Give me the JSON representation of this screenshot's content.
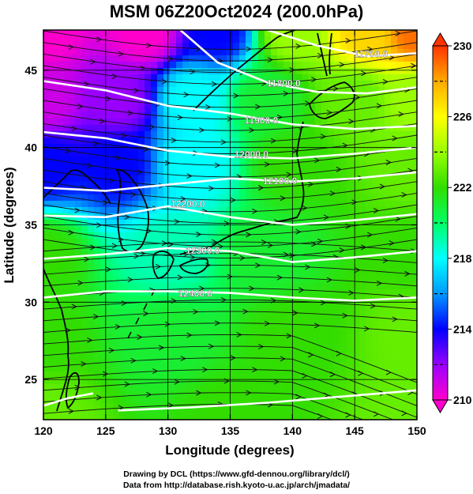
{
  "title": "MSM 06Z20Oct2024 (200.0hPa)",
  "credits": {
    "line1": "Drawing by DCL (https://www.gfd-dennou.org/library/dcl/)",
    "line2": "Data from http://database.rish.kyoto-u.ac.jp/arch/jmadata/"
  },
  "chart_data": {
    "type": "heatmap",
    "xlabel": "Longitude (degrees)",
    "ylabel": "Latitude  (degrees)",
    "xlim": [
      120,
      150
    ],
    "ylim": [
      22.4,
      47.6
    ],
    "xticks": [
      120,
      125,
      130,
      135,
      140,
      145,
      150
    ],
    "yticks": [
      25,
      30,
      35,
      40,
      45
    ],
    "colorbar": {
      "min": 210,
      "max": 230,
      "ticks": [
        210,
        214,
        218,
        222,
        226,
        230
      ],
      "colors": [
        "#ff00cc",
        "#9900ff",
        "#0000ff",
        "#0099ff",
        "#00ffff",
        "#00ff66",
        "#33dd00",
        "#99ff00",
        "#ffff00",
        "#ffaa00",
        "#ff3300"
      ]
    },
    "temperature_field": [
      {
        "lon": 120,
        "lat": 47.6,
        "value": 210
      },
      {
        "lon": 128,
        "lat": 47.6,
        "value": 210
      },
      {
        "lon": 134,
        "lat": 47.6,
        "value": 214
      },
      {
        "lon": 140,
        "lat": 47.6,
        "value": 224
      },
      {
        "lon": 146,
        "lat": 47.6,
        "value": 227
      },
      {
        "lon": 150,
        "lat": 47.6,
        "value": 229
      },
      {
        "lon": 120,
        "lat": 43,
        "value": 211
      },
      {
        "lon": 126,
        "lat": 43,
        "value": 212
      },
      {
        "lon": 132,
        "lat": 43,
        "value": 218
      },
      {
        "lon": 138,
        "lat": 43,
        "value": 221
      },
      {
        "lon": 145,
        "lat": 43,
        "value": 223
      },
      {
        "lon": 150,
        "lat": 43,
        "value": 224
      },
      {
        "lon": 120,
        "lat": 39,
        "value": 214
      },
      {
        "lon": 126,
        "lat": 39,
        "value": 214
      },
      {
        "lon": 132,
        "lat": 39,
        "value": 218
      },
      {
        "lon": 140,
        "lat": 39,
        "value": 222
      },
      {
        "lon": 150,
        "lat": 39,
        "value": 223
      },
      {
        "lon": 120,
        "lat": 33,
        "value": 222
      },
      {
        "lon": 130,
        "lat": 33,
        "value": 219
      },
      {
        "lon": 138,
        "lat": 33,
        "value": 221
      },
      {
        "lon": 150,
        "lat": 33,
        "value": 222
      },
      {
        "lon": 120,
        "lat": 28,
        "value": 222
      },
      {
        "lon": 130,
        "lat": 28,
        "value": 221
      },
      {
        "lon": 140,
        "lat": 28,
        "value": 222
      },
      {
        "lon": 150,
        "lat": 28,
        "value": 223
      },
      {
        "lon": 120,
        "lat": 22.4,
        "value": 223
      },
      {
        "lon": 135,
        "lat": 22.4,
        "value": 222
      },
      {
        "lon": 150,
        "lat": 22.4,
        "value": 223
      }
    ],
    "contours": [
      {
        "label": "11700.0",
        "label_at": [
          146.3,
          46.1
        ],
        "points": [
          [
            138,
            47.6
          ],
          [
            142,
            46.6
          ],
          [
            146,
            45.9
          ],
          [
            150,
            46.1
          ]
        ]
      },
      {
        "label": "11800.0",
        "label_at": [
          139.3,
          44.2
        ],
        "points": [
          [
            131,
            47.6
          ],
          [
            134,
            45.5
          ],
          [
            138,
            44.2
          ],
          [
            142,
            43.6
          ],
          [
            146,
            43.5
          ],
          [
            150,
            43.9
          ]
        ]
      },
      {
        "label": "11900.0",
        "label_at": [
          137.5,
          41.8
        ],
        "points": [
          [
            120,
            44.3
          ],
          [
            125,
            43.7
          ],
          [
            130,
            42.7
          ],
          [
            135,
            42.2
          ],
          [
            140,
            41.5
          ],
          [
            145,
            41.2
          ],
          [
            150,
            41.4
          ]
        ]
      },
      {
        "label": "12000.0",
        "label_at": [
          136.7,
          39.6
        ],
        "points": [
          [
            120,
            41.0
          ],
          [
            125,
            40.6
          ],
          [
            130,
            39.8
          ],
          [
            135,
            39.4
          ],
          [
            140,
            39.3
          ],
          [
            145,
            39.6
          ],
          [
            150,
            40.0
          ]
        ]
      },
      {
        "label": "12100.0",
        "label_at": [
          139.0,
          37.9
        ],
        "points": [
          [
            120,
            37.4
          ],
          [
            125,
            37.2
          ],
          [
            130,
            37.6
          ],
          [
            135,
            38.0
          ],
          [
            140,
            37.8
          ],
          [
            145,
            38.0
          ],
          [
            150,
            38.4
          ]
        ]
      },
      {
        "label": "12200.0",
        "label_at": [
          131.6,
          36.4
        ],
        "points": [
          [
            120,
            35.6
          ],
          [
            125,
            35.5
          ],
          [
            130,
            36.2
          ],
          [
            135,
            35.5
          ],
          [
            140,
            35.0
          ],
          [
            145,
            35.3
          ],
          [
            150,
            35.7
          ]
        ]
      },
      {
        "label": "12300.0",
        "label_at": [
          132.8,
          33.4
        ],
        "points": [
          [
            120,
            32.8
          ],
          [
            125,
            33.1
          ],
          [
            130,
            33.5
          ],
          [
            135,
            33.3
          ],
          [
            140,
            32.6
          ],
          [
            145,
            32.9
          ],
          [
            150,
            33.3
          ]
        ]
      },
      {
        "label": "12400.0",
        "label_at": [
          132.2,
          30.6
        ],
        "points": [
          [
            120,
            30.3
          ],
          [
            125,
            30.7
          ],
          [
            130,
            30.7
          ],
          [
            135,
            30.6
          ],
          [
            140,
            30.3
          ],
          [
            145,
            30.1
          ],
          [
            150,
            30.3
          ]
        ]
      },
      {
        "label": "",
        "label_at": null,
        "points": [
          [
            120,
            23.3
          ],
          [
            122,
            23.8
          ],
          [
            124,
            24.1
          ]
        ]
      },
      {
        "label": "",
        "label_at": null,
        "points": [
          [
            126,
            23.0
          ],
          [
            132,
            23.2
          ],
          [
            138,
            23.5
          ],
          [
            144,
            23.9
          ],
          [
            150,
            24.3
          ]
        ]
      }
    ],
    "wind": "westerly jet, strongest along 38-44N"
  }
}
